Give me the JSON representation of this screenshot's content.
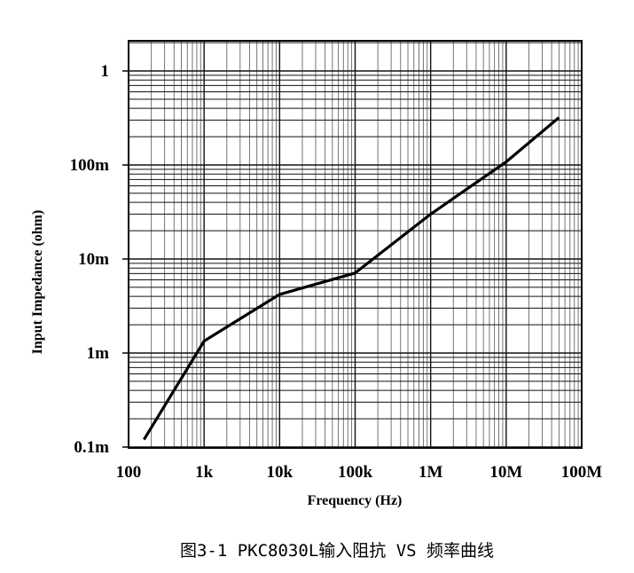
{
  "chart_data": {
    "type": "line",
    "title": "",
    "xlabel": "Frequency (Hz)",
    "ylabel": "Input Impedance  (ohm)",
    "x_scale": "log",
    "y_scale": "log",
    "xlim": [
      100,
      100000000
    ],
    "ylim": [
      0.0001,
      2
    ],
    "grid": true,
    "x_ticks": [
      {
        "value": 100,
        "label": "100"
      },
      {
        "value": 1000,
        "label": "1k"
      },
      {
        "value": 10000,
        "label": "10k"
      },
      {
        "value": 100000,
        "label": "100k"
      },
      {
        "value": 1000000,
        "label": "1M"
      },
      {
        "value": 10000000,
        "label": "10M"
      },
      {
        "value": 100000000,
        "label": "100M"
      }
    ],
    "y_ticks": [
      {
        "value": 0.0001,
        "label": "0.1m"
      },
      {
        "value": 0.001,
        "label": "1m"
      },
      {
        "value": 0.01,
        "label": "10m"
      },
      {
        "value": 0.1,
        "label": "100m"
      },
      {
        "value": 1,
        "label": "1"
      }
    ],
    "series": [
      {
        "color": "#000000",
        "x": [
          160,
          1000,
          10000,
          100000,
          1000000,
          10000000,
          50000000
        ],
        "y": [
          0.00012,
          0.00134,
          0.0042,
          0.0071,
          0.03,
          0.108,
          0.32
        ]
      }
    ]
  },
  "caption": "图3-1 PKC8030L输入阻抗 VS 频率曲线"
}
